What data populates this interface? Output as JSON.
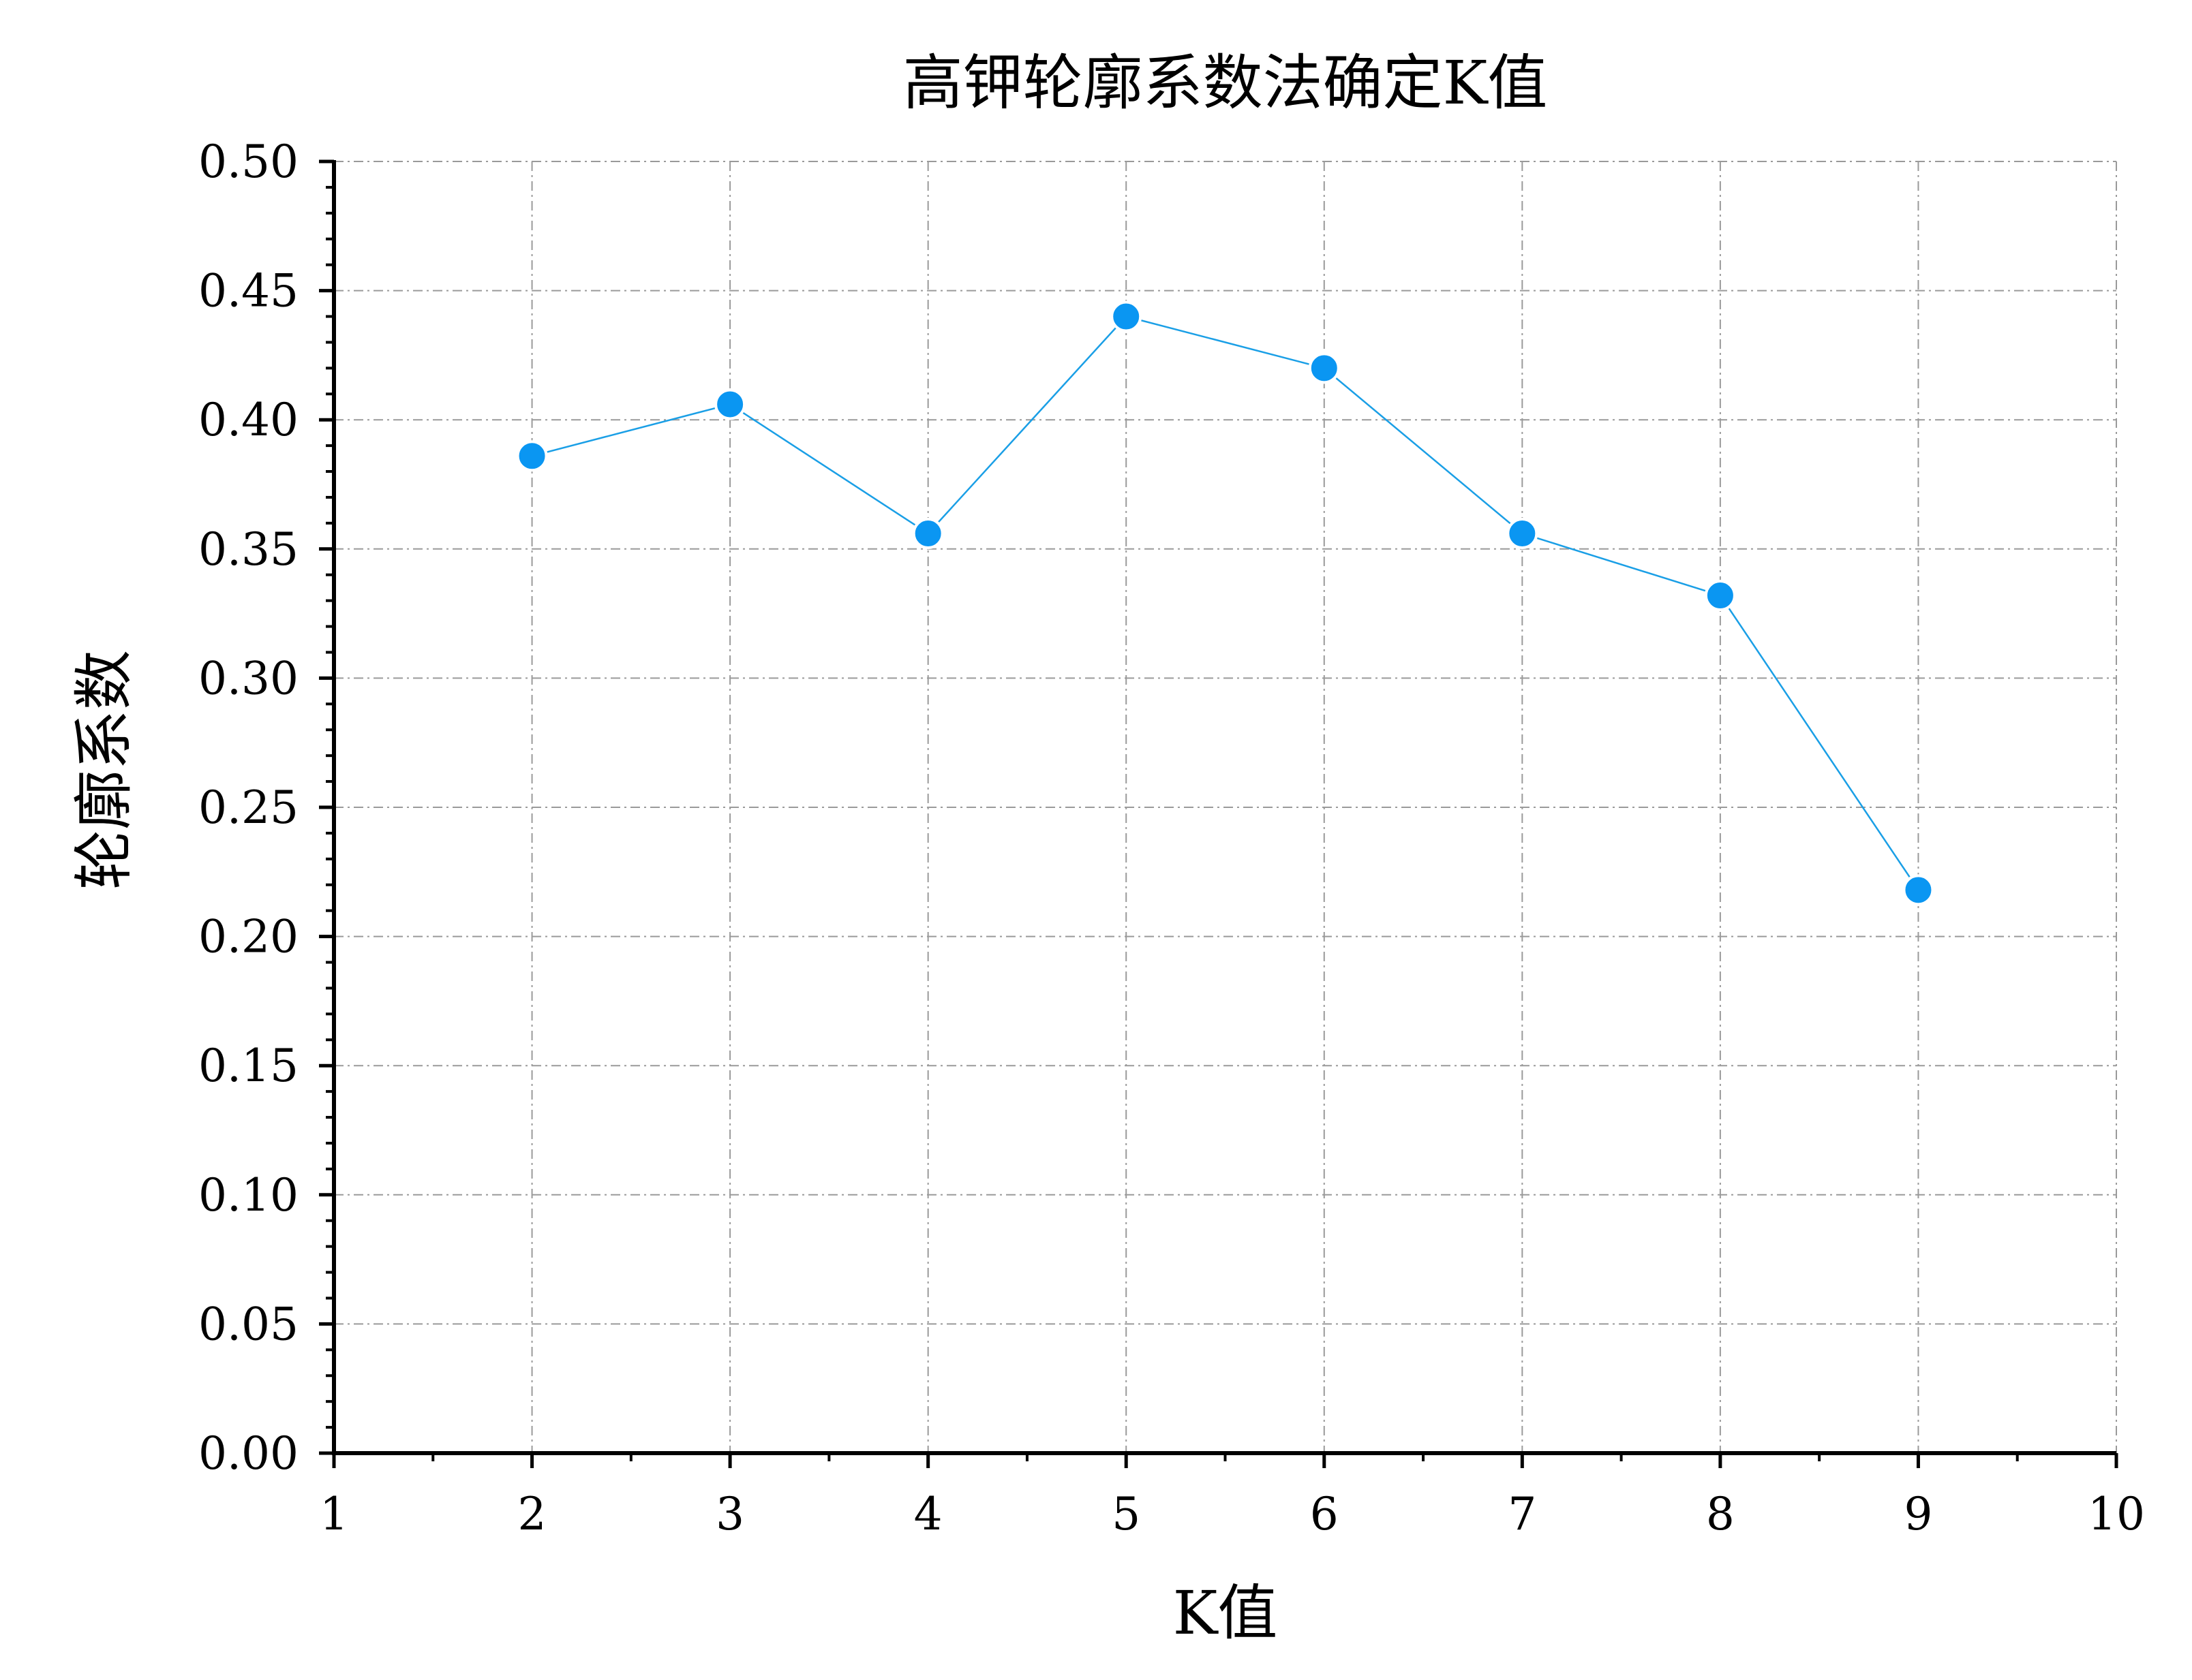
{
  "chart_data": {
    "type": "line",
    "title": "高钾轮廓系数法确定K值",
    "xlabel": "K值",
    "ylabel": "轮廓系数",
    "xlim": [
      1,
      10
    ],
    "ylim": [
      0.0,
      0.5
    ],
    "x_ticks": [
      "1",
      "2",
      "3",
      "4",
      "5",
      "6",
      "7",
      "8",
      "9",
      "10"
    ],
    "y_ticks": [
      "0.00",
      "0.05",
      "0.10",
      "0.15",
      "0.20",
      "0.25",
      "0.30",
      "0.35",
      "0.40",
      "0.45",
      "0.50"
    ],
    "grid": true,
    "grid_style": "dash-dot",
    "legend": "none",
    "series": [
      {
        "x": [
          2,
          3,
          4,
          5,
          6,
          7,
          8,
          9
        ],
        "values": [
          0.386,
          0.406,
          0.356,
          0.44,
          0.42,
          0.356,
          0.332,
          0.218
        ]
      }
    ],
    "colors": {
      "line": "#1a9fe6",
      "marker": "#0a96f2",
      "grid": "#9a9a9a",
      "axis": "#000000"
    }
  }
}
